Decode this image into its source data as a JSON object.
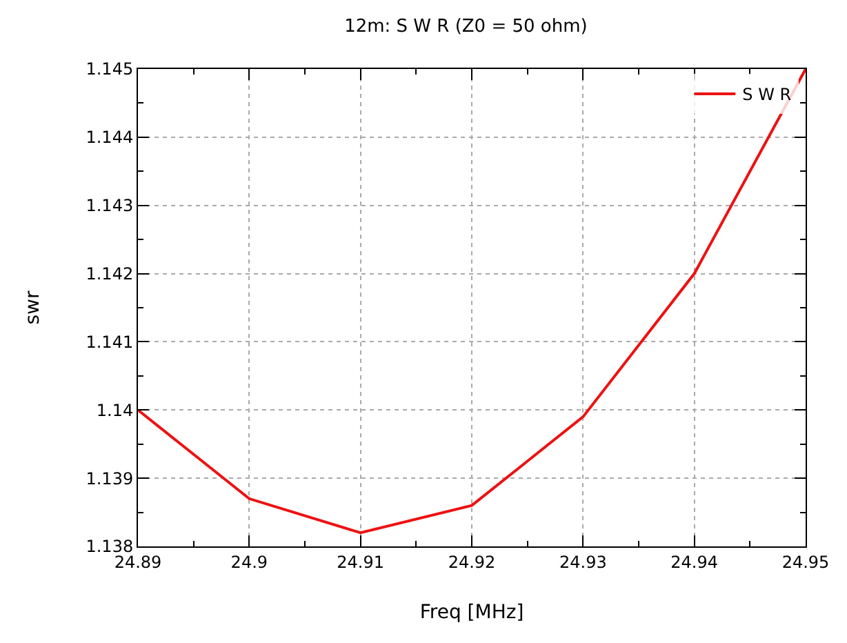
{
  "chart_data": {
    "type": "line",
    "title": "12m: S W R (Z0 = 50 ohm)",
    "xlabel": "Freq [MHz]",
    "ylabel": "swr",
    "x": [
      24.89,
      24.9,
      24.91,
      24.92,
      24.93,
      24.94,
      24.95
    ],
    "series": [
      {
        "name": "S W R",
        "color": "#ee1111",
        "values": [
          1.14,
          1.1387,
          1.1382,
          1.1386,
          1.1399,
          1.142,
          1.145
        ]
      }
    ],
    "xlim": [
      24.89,
      24.95
    ],
    "xticks": [
      24.89,
      24.9,
      24.91,
      24.92,
      24.93,
      24.94,
      24.95
    ],
    "ylim": [
      1.138,
      1.145
    ],
    "yticks": [
      1.138,
      1.139,
      1.14,
      1.141,
      1.142,
      1.143,
      1.144,
      1.145
    ],
    "grid": true,
    "legend": "top right",
    "marker": "none",
    "line_style": "solid"
  }
}
